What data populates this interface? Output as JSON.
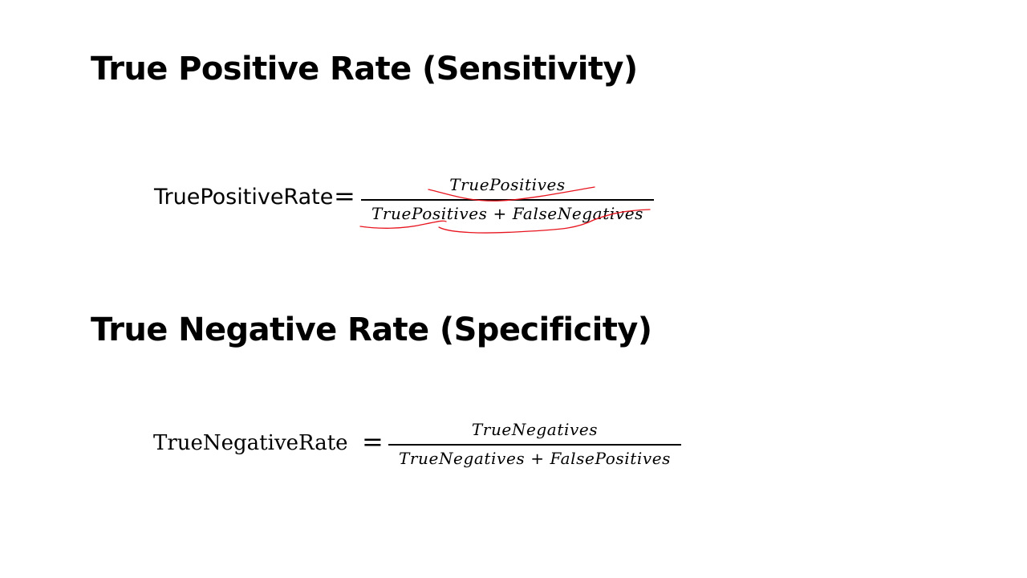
{
  "sections": [
    {
      "heading": "True Positive Rate (Sensitivity)",
      "formula": {
        "lhs": "TruePositiveRate",
        "operator": "=",
        "numerator": "TruePositives",
        "denominator": "TruePositives + FalseNegatives"
      }
    },
    {
      "heading": "True Negative Rate (Specificity)",
      "formula": {
        "lhs": "TrueNegativeRate",
        "operator": "=",
        "numerator": "TrueNegatives",
        "denominator": "TrueNegatives + FalsePositives"
      }
    }
  ],
  "annotation": {
    "ink_color": "#e8141e"
  }
}
